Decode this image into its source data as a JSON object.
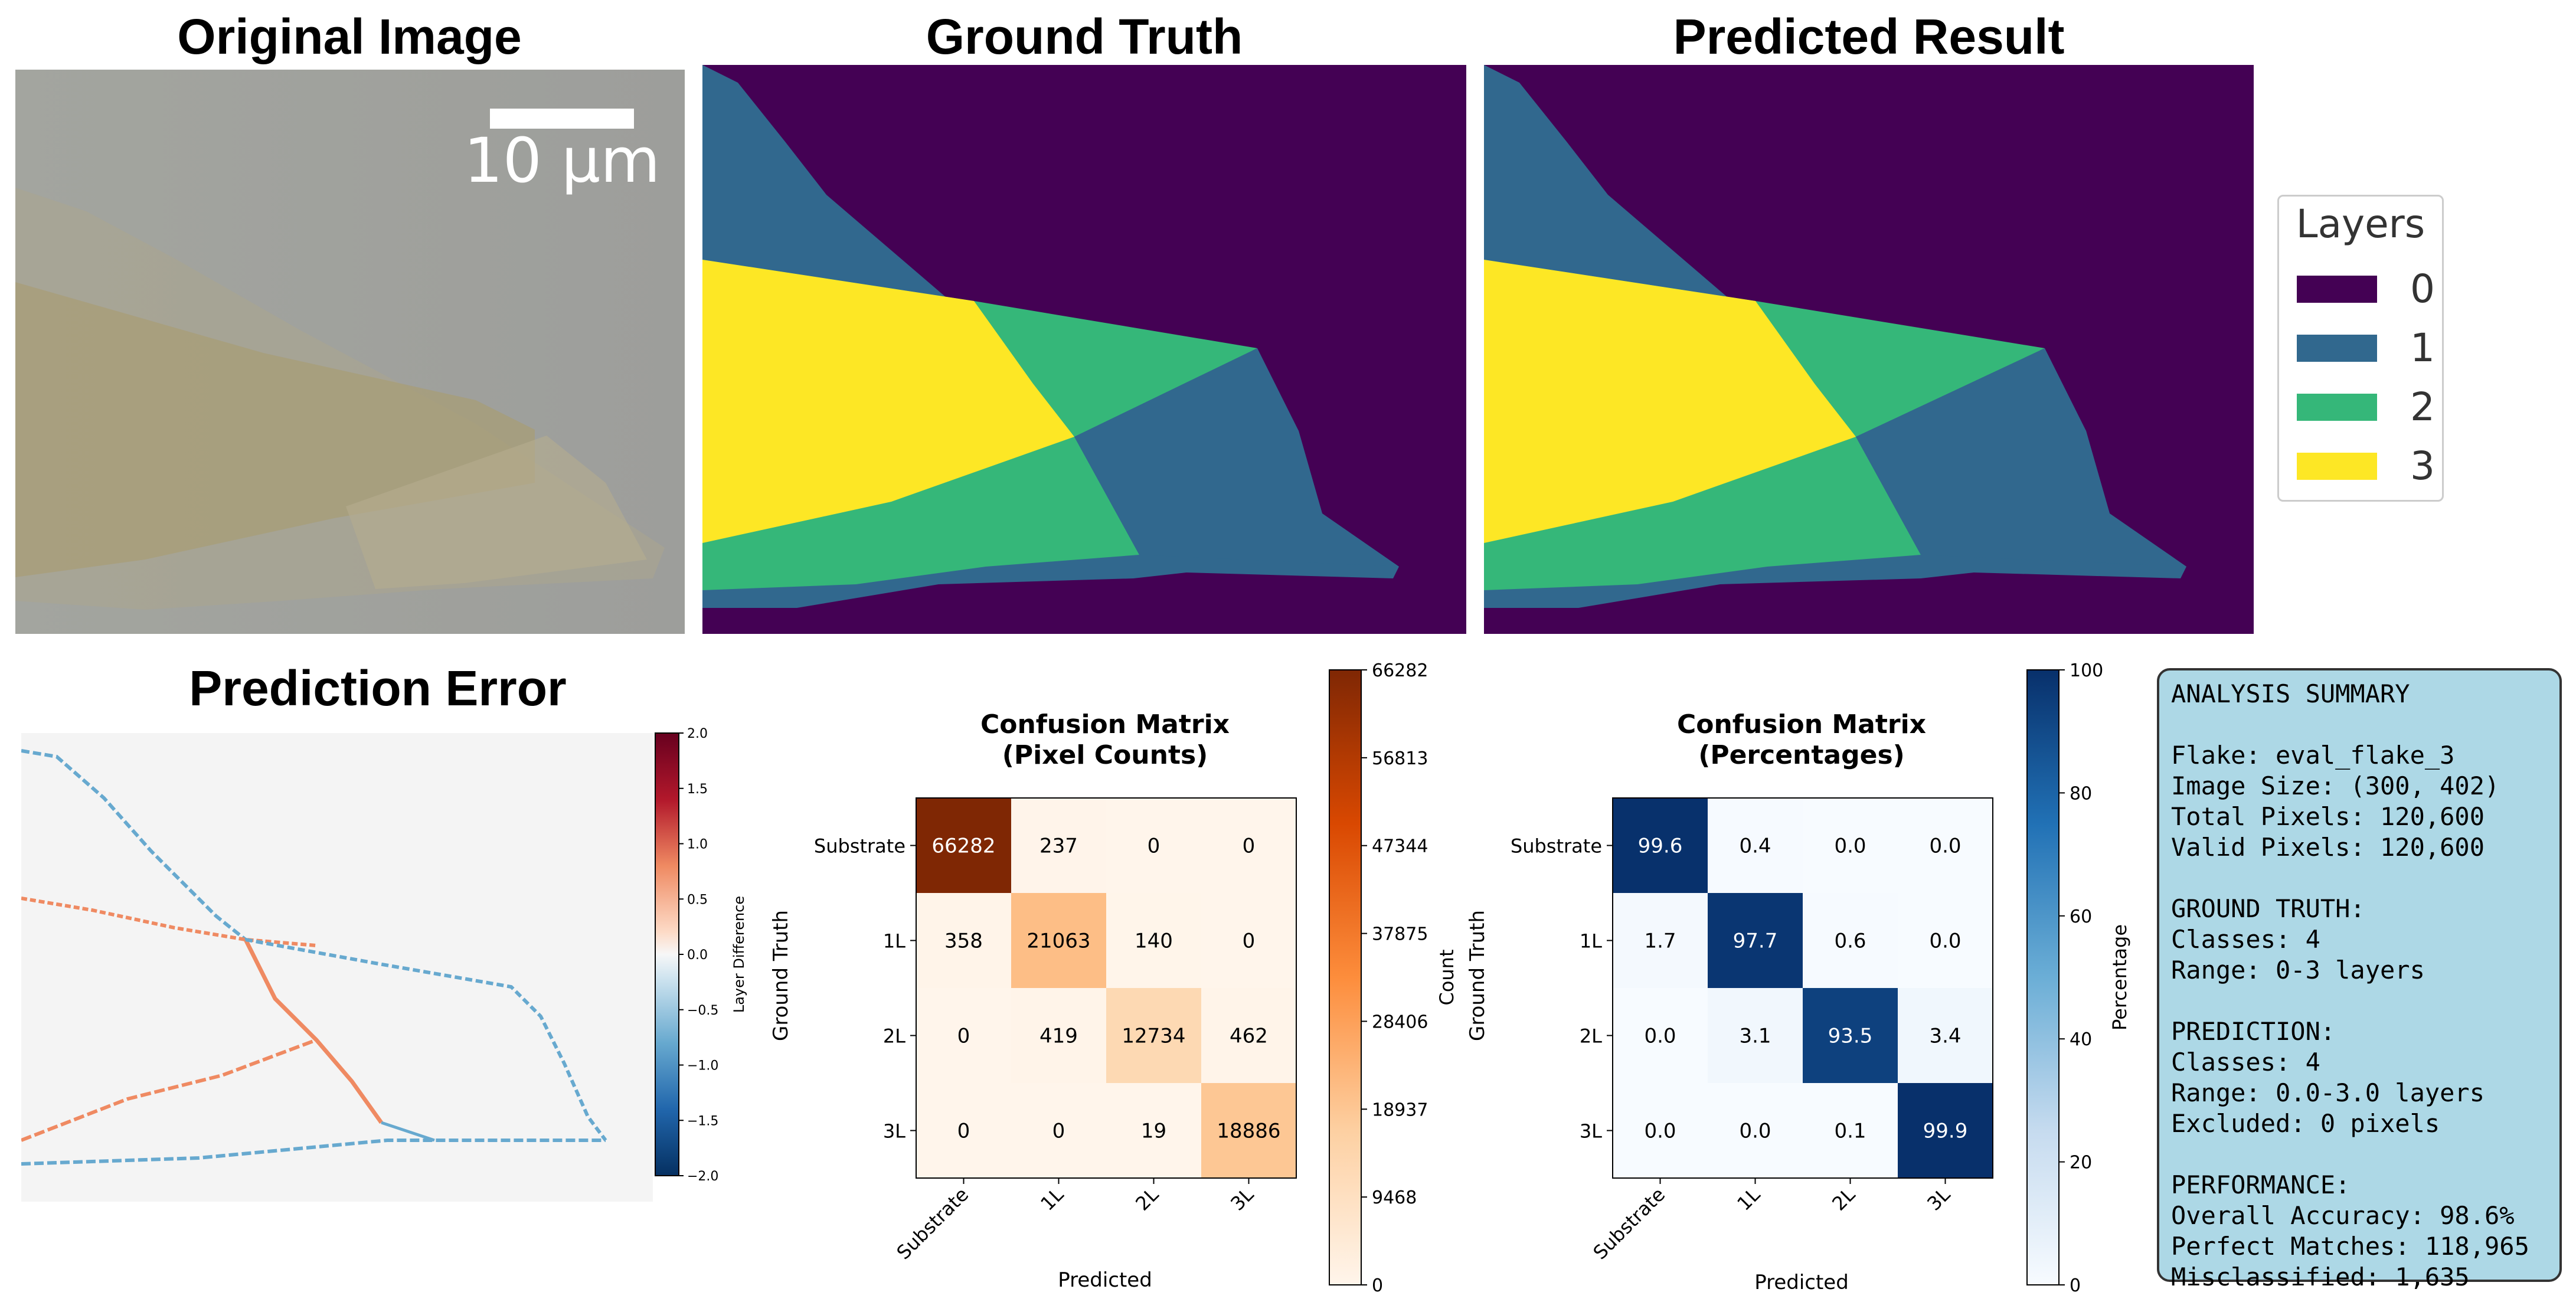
{
  "titles": {
    "original": "Original Image",
    "ground_truth": "Ground Truth",
    "predicted": "Predicted Result",
    "error": "Prediction Error"
  },
  "scale_bar": {
    "label": "10 µm"
  },
  "legend": {
    "title": "Layers",
    "entries": [
      "0",
      "1",
      "2",
      "3"
    ]
  },
  "layer_colors": [
    "#440154",
    "#31688e",
    "#35b779",
    "#fde725"
  ],
  "chart_data": [
    {
      "type": "heatmap",
      "id": "confusion-counts",
      "title": "Confusion Matrix\n(Pixel Counts)",
      "title_lines": [
        "Confusion Matrix",
        "(Pixel Counts)"
      ],
      "xlabel": "Predicted",
      "ylabel": "Ground Truth",
      "categories": [
        "Substrate",
        "1L",
        "2L",
        "3L"
      ],
      "values": [
        [
          66282,
          237,
          0,
          0
        ],
        [
          358,
          21063,
          140,
          0
        ],
        [
          0,
          419,
          12734,
          462
        ],
        [
          0,
          0,
          19,
          18886
        ]
      ],
      "colormap": "Oranges",
      "colorbar": {
        "label": "Count",
        "range": [
          0,
          66282
        ],
        "ticks": [
          "0",
          "9468",
          "18937",
          "28406",
          "37875",
          "47344",
          "56813",
          "66282"
        ]
      }
    },
    {
      "type": "heatmap",
      "id": "confusion-percent",
      "title": "Confusion Matrix\n(Percentages)",
      "title_lines": [
        "Confusion Matrix",
        "(Percentages)"
      ],
      "xlabel": "Predicted",
      "ylabel": "Ground Truth",
      "categories": [
        "Substrate",
        "1L",
        "2L",
        "3L"
      ],
      "values": [
        [
          99.6,
          0.4,
          0.0,
          0.0
        ],
        [
          1.7,
          97.7,
          0.6,
          0.0
        ],
        [
          0.0,
          3.1,
          93.5,
          3.4
        ],
        [
          0.0,
          0.0,
          0.1,
          99.9
        ]
      ],
      "colormap": "Blues",
      "colorbar": {
        "label": "Percentage",
        "range": [
          0,
          100
        ],
        "ticks": [
          "0",
          "20",
          "40",
          "60",
          "80",
          "100"
        ]
      }
    },
    {
      "type": "heatmap",
      "id": "prediction-error",
      "title": "Prediction Error",
      "colormap": "RdBu_r",
      "colorbar": {
        "label": "Layer Difference",
        "range": [
          -2.0,
          2.0
        ],
        "ticks": [
          "−2.0",
          "−1.5",
          "−1.0",
          "−0.5",
          "0.0",
          "0.5",
          "1.0",
          "1.5",
          "2.0"
        ]
      }
    }
  ],
  "summary": {
    "lines": [
      "ANALYSIS SUMMARY",
      "",
      "Flake: eval_flake_3",
      "Image Size: (300, 402)",
      "Total Pixels: 120,600",
      "Valid Pixels: 120,600",
      "",
      "GROUND TRUTH:",
      "Classes: 4",
      "Range: 0-3 layers",
      "",
      "PREDICTION:",
      "Classes: 4",
      "Range: 0.0-3.0 layers",
      "Excluded: 0 pixels",
      "",
      "PERFORMANCE:",
      "Overall Accuracy: 98.6%",
      "Perfect Matches: 118,965",
      "Misclassified: 1,635"
    ]
  }
}
